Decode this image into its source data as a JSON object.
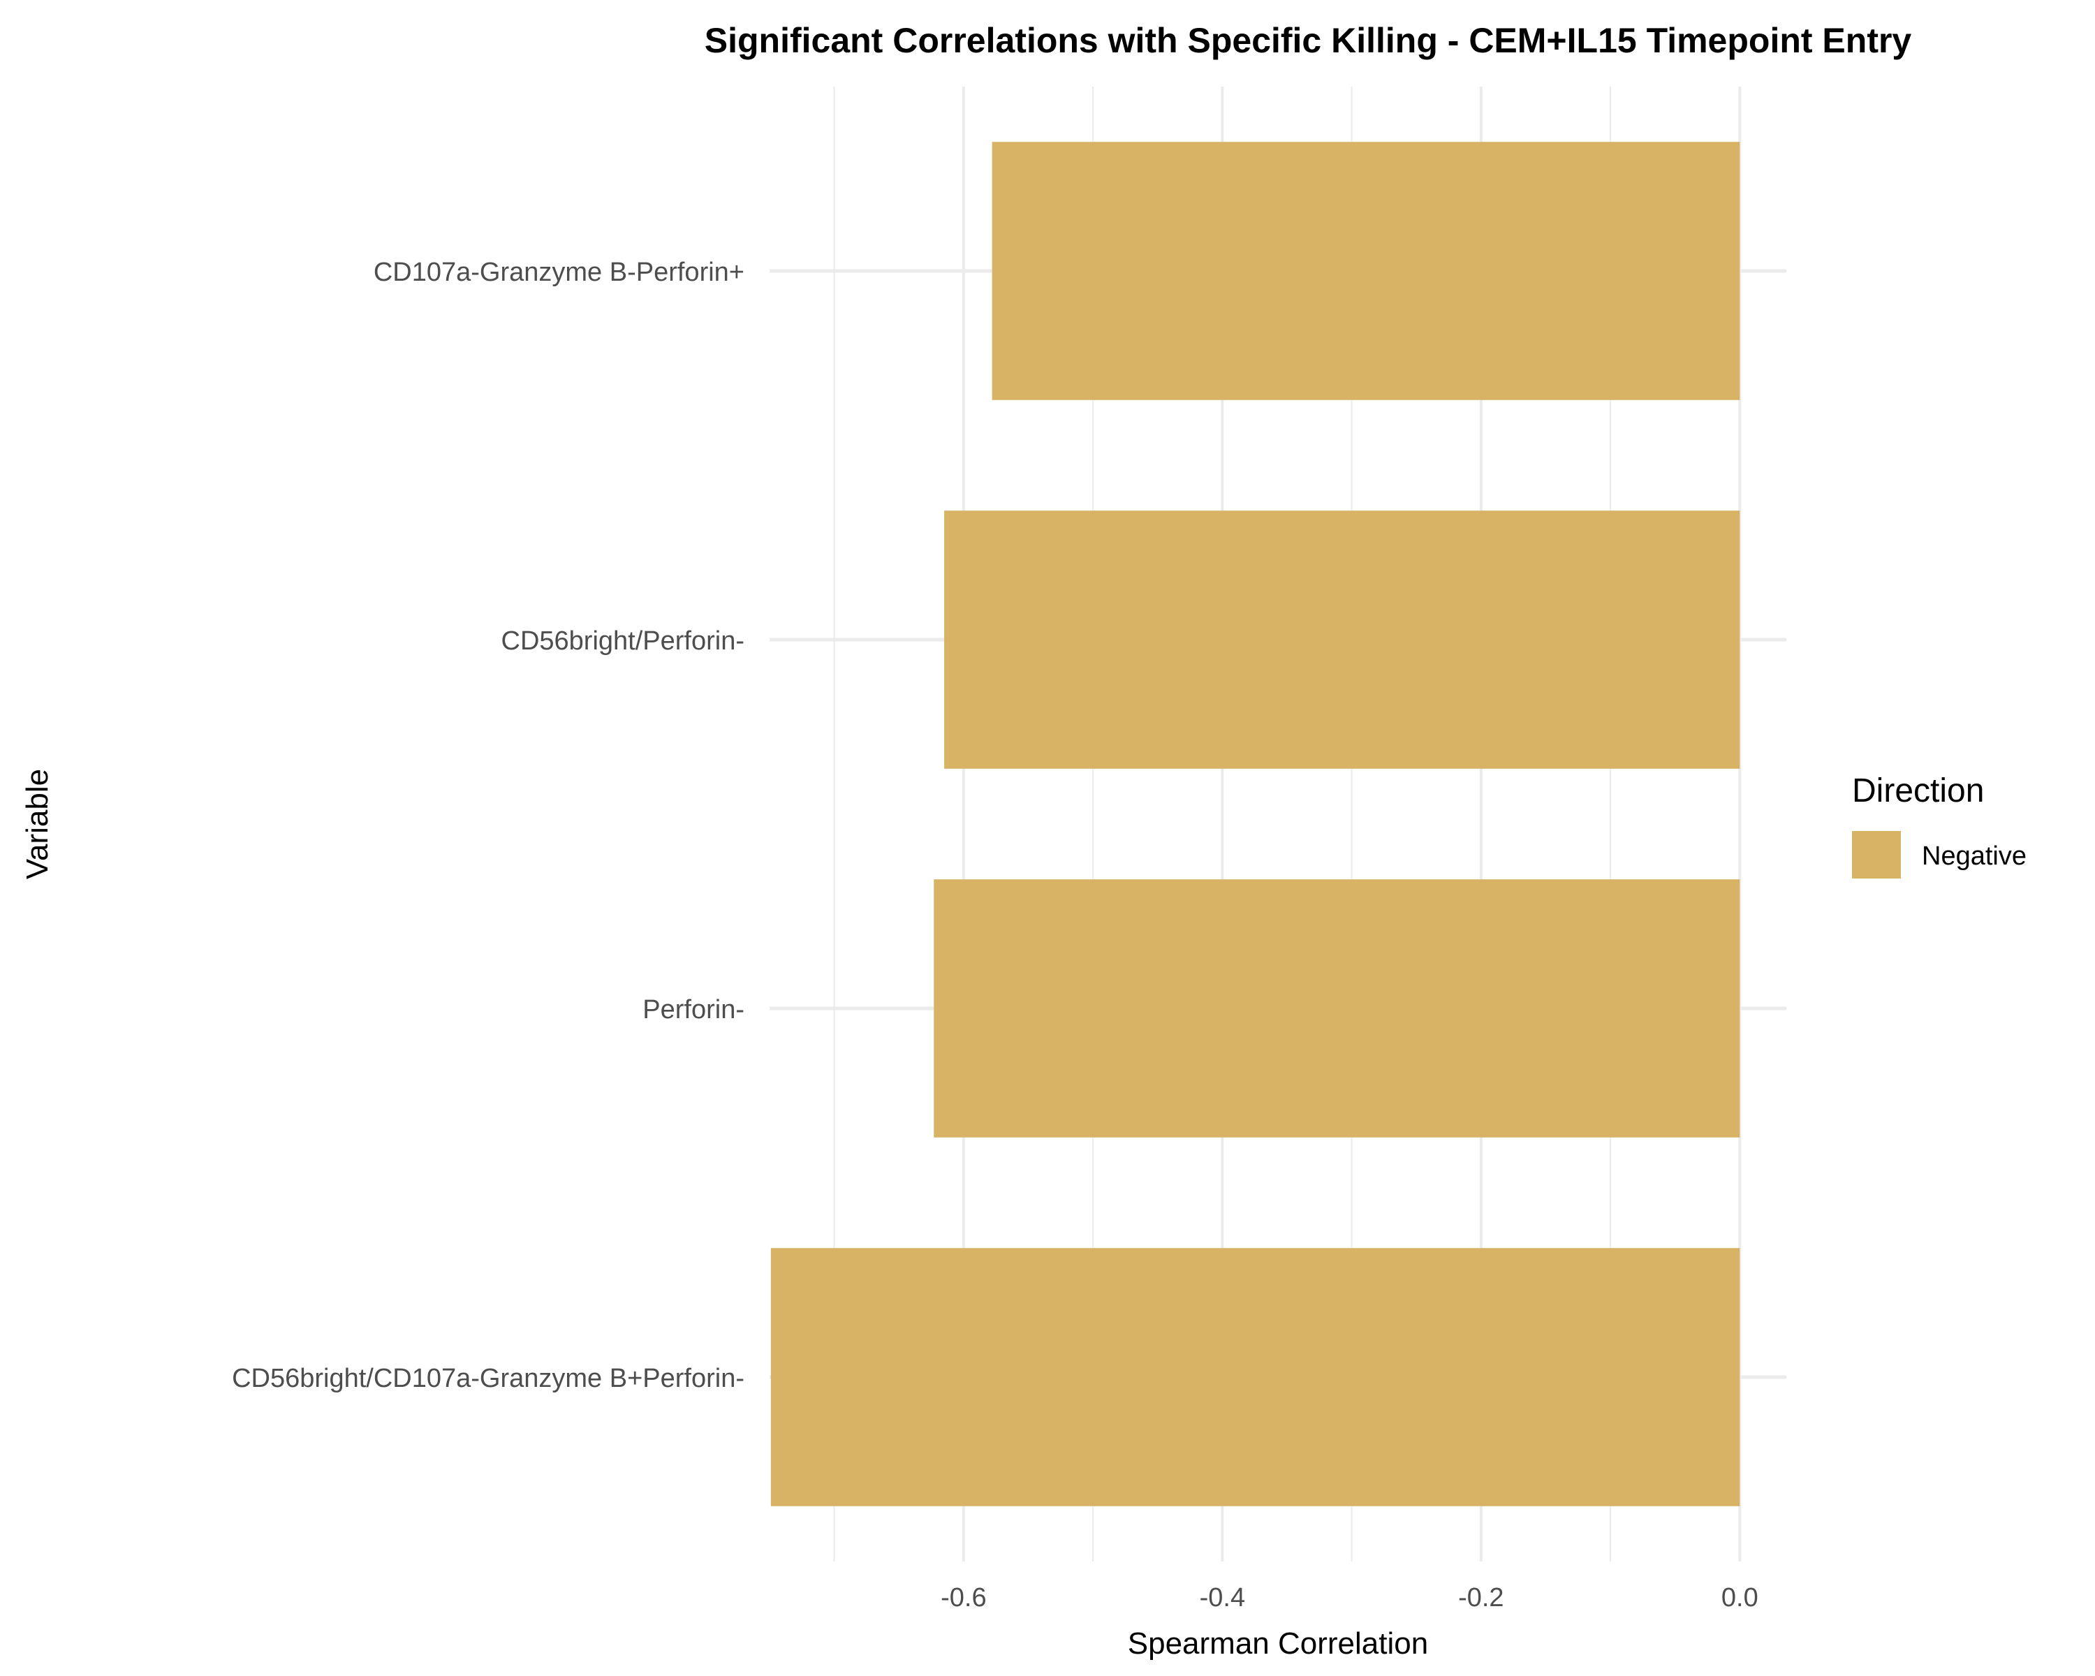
{
  "chart_data": {
    "type": "bar",
    "orientation": "horizontal",
    "title": "Significant Correlations with Specific Killing - CEM+IL15 Timepoint Entry",
    "xlabel": "Spearman Correlation",
    "ylabel": "Variable",
    "xlim": [
      -0.75,
      0.036
    ],
    "x_ticks": [
      -0.6,
      -0.4,
      -0.2,
      0.0
    ],
    "x_tick_labels": [
      "-0.6",
      "-0.4",
      "-0.2",
      "0.0"
    ],
    "x_minor_gridlines": [
      -0.7,
      -0.5,
      -0.3,
      -0.1
    ],
    "grid": true,
    "categories": [
      "CD107a-Granzyme B-Perforin+",
      "CD56bright/Perforin-",
      "Perforin-",
      "CD56bright/CD107a-Granzyme B+Perforin-"
    ],
    "series": [
      {
        "name": "Negative",
        "color": "#D8B365",
        "values": [
          -0.578,
          -0.615,
          -0.623,
          -0.749
        ]
      }
    ],
    "legend": {
      "title": "Direction",
      "position": "right",
      "entries": [
        {
          "label": "Negative",
          "color": "#D8B365"
        }
      ]
    }
  }
}
